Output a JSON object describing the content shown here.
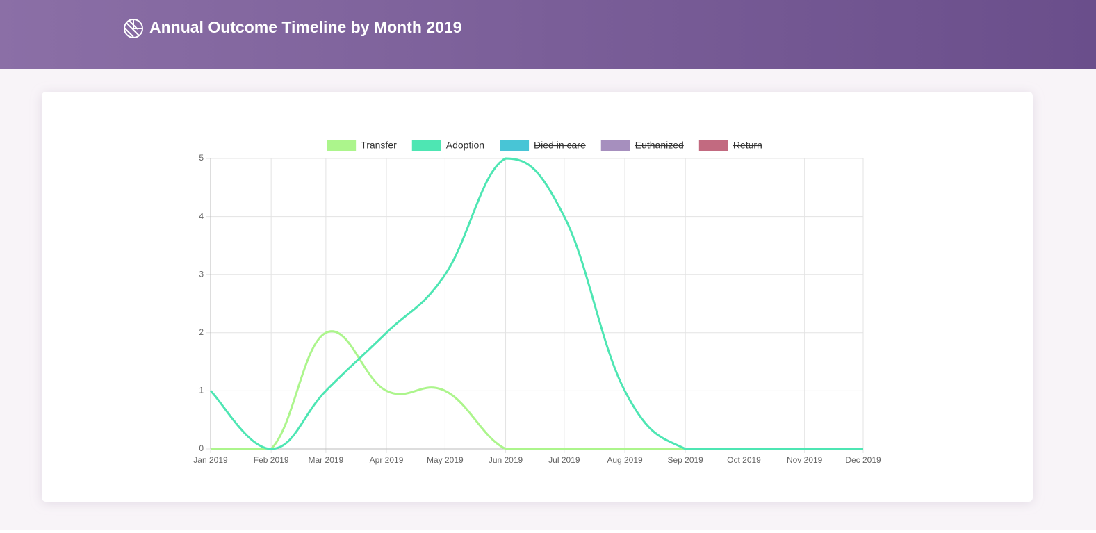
{
  "header": {
    "title": "Annual Outcome Timeline by Month 2019"
  },
  "chart_data": {
    "type": "line",
    "x": [
      "Jan 2019",
      "Feb 2019",
      "Mar 2019",
      "Apr 2019",
      "May 2019",
      "Jun 2019",
      "Jul 2019",
      "Aug 2019",
      "Sep 2019",
      "Oct 2019",
      "Nov 2019",
      "Dec 2019"
    ],
    "series": [
      {
        "name": "Transfer",
        "color": "#acf58c",
        "values": [
          0,
          0,
          2,
          1,
          1,
          0,
          0,
          0,
          0,
          0,
          0,
          0
        ]
      },
      {
        "name": "Adoption",
        "color": "#4ee6b3",
        "values": [
          1,
          0,
          1,
          2,
          3,
          5,
          4,
          1,
          0,
          0,
          0,
          0
        ]
      },
      {
        "name": "Died in care",
        "color": "#48c5d6",
        "hidden": true,
        "values": [
          null,
          null,
          null,
          null,
          null,
          null,
          null,
          null,
          null,
          null,
          null,
          null
        ]
      },
      {
        "name": "Euthanized",
        "color": "#a68fbe",
        "hidden": true,
        "values": [
          null,
          null,
          null,
          null,
          null,
          null,
          null,
          null,
          null,
          null,
          null,
          null
        ]
      },
      {
        "name": "Return",
        "color": "#c26a80",
        "hidden": true,
        "values": [
          null,
          null,
          null,
          null,
          null,
          null,
          null,
          null,
          null,
          null,
          null,
          null
        ]
      }
    ],
    "ylim": [
      0,
      5
    ],
    "yticks": [
      0,
      1,
      2,
      3,
      4,
      5
    ],
    "grid": true,
    "legend": "top"
  }
}
